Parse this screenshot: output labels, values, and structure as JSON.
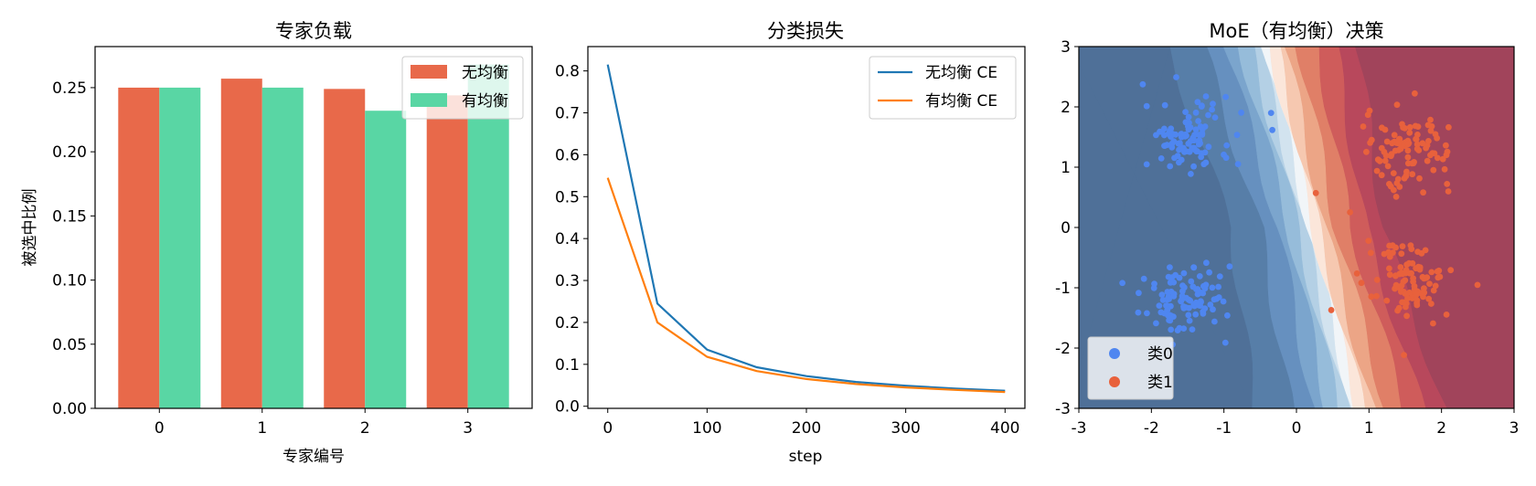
{
  "colors": {
    "no_balance": "#E8694A",
    "with_balance": "#59D6A4",
    "line_no_balance": "#1f77b4",
    "line_with_balance": "#ff7f0e",
    "class0": "#4F86F0",
    "class1": "#E8613C"
  },
  "chart_data": [
    {
      "type": "bar",
      "title": "专家负载",
      "xlabel": "专家编号",
      "ylabel": "被选中比例",
      "categories": [
        "0",
        "1",
        "2",
        "3"
      ],
      "series": [
        {
          "name": "无均衡",
          "color": "#E8694A",
          "values": [
            0.25,
            0.257,
            0.249,
            0.244
          ]
        },
        {
          "name": "有均衡",
          "color": "#59D6A4",
          "values": [
            0.25,
            0.25,
            0.232,
            0.268
          ]
        }
      ],
      "ylim": [
        0,
        0.282
      ],
      "yticks": [
        "0.00",
        "0.05",
        "0.10",
        "0.15",
        "0.20",
        "0.25"
      ],
      "legend": "top-right",
      "grid": false
    },
    {
      "type": "line",
      "title": "分类损失",
      "xlabel": "step",
      "ylabel": "",
      "x": [
        0,
        50,
        100,
        150,
        200,
        250,
        300,
        350,
        400
      ],
      "series": [
        {
          "name": "无均衡 CE",
          "color": "#1f77b4",
          "values": [
            0.815,
            0.245,
            0.135,
            0.093,
            0.072,
            0.058,
            0.049,
            0.042,
            0.037
          ]
        },
        {
          "name": "有均衡 CE",
          "color": "#ff7f0e",
          "values": [
            0.545,
            0.2,
            0.118,
            0.084,
            0.065,
            0.053,
            0.045,
            0.039,
            0.034
          ]
        }
      ],
      "xlim": [
        -20,
        420
      ],
      "ylim": [
        -0.005,
        0.858
      ],
      "xticks": [
        "0",
        "100",
        "200",
        "300",
        "400"
      ],
      "yticks": [
        "0.0",
        "0.1",
        "0.2",
        "0.3",
        "0.4",
        "0.5",
        "0.6",
        "0.7",
        "0.8"
      ],
      "legend": "top-right",
      "grid": false
    },
    {
      "type": "scatter",
      "title": "MoE（有均衡）决策",
      "xlabel": "",
      "ylabel": "",
      "xlim": [
        -3,
        3
      ],
      "ylim": [
        -3,
        3
      ],
      "xticks": [
        "-3",
        "-2",
        "-1",
        "0",
        "1",
        "2",
        "3"
      ],
      "yticks": [
        "-3",
        "-2",
        "-1",
        "0",
        "1",
        "2",
        "3"
      ],
      "background": "filled decision-probability contours (blue = 类0, red = 类1)",
      "series": [
        {
          "name": "类0",
          "color": "#4F86F0",
          "clusters": [
            {
              "center": [
                -1.5,
                1.5
              ],
              "n": 100
            },
            {
              "center": [
                -1.5,
                -1.2
              ],
              "n": 100
            }
          ],
          "outliers": [
            [
              -0.35,
              1.9
            ],
            [
              -2.4,
              -0.92
            ]
          ]
        },
        {
          "name": "类1",
          "color": "#E8613C",
          "clusters": [
            {
              "center": [
                1.55,
                1.3
              ],
              "n": 100
            },
            {
              "center": [
                1.55,
                -0.9
              ],
              "n": 100
            }
          ],
          "outliers": [
            [
              0.48,
              -1.37
            ]
          ]
        }
      ],
      "legend": "bottom-left",
      "grid": false
    }
  ]
}
